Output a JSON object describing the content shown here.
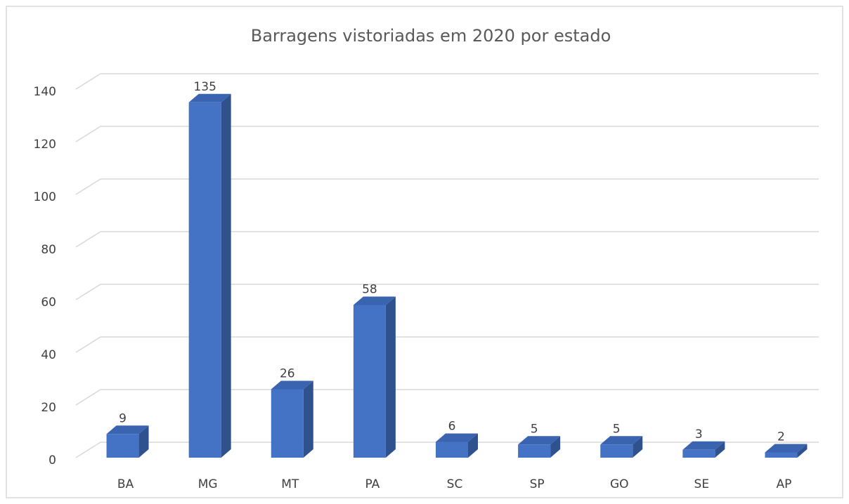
{
  "chart_data": {
    "type": "bar3d",
    "title": "Barragens vistoriadas em 2020 por estado",
    "categories": [
      "BA",
      "MG",
      "MT",
      "PA",
      "SC",
      "SP",
      "GO",
      "SE",
      "AP"
    ],
    "values": [
      9,
      135,
      26,
      58,
      6,
      5,
      5,
      3,
      2
    ],
    "color": "#4472c4",
    "side_color": "#2f528f",
    "top_color": "#3b64b0",
    "ylim": [
      0,
      140
    ],
    "yticks": [
      0,
      20,
      40,
      60,
      80,
      100,
      120,
      140
    ],
    "grid": true
  }
}
